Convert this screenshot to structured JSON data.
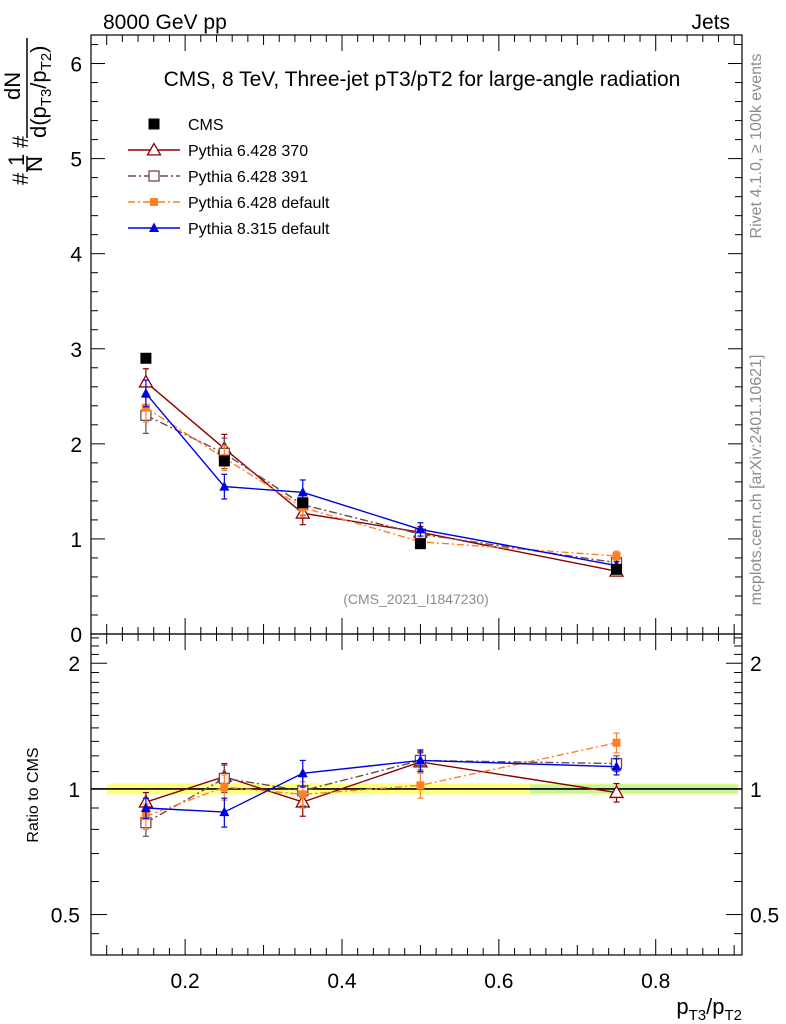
{
  "header": {
    "left": "8000 GeV pp",
    "right": "Jets"
  },
  "side_labels": {
    "rivet": "Rivet 4.1.0, ≥ 100k events",
    "mcplots": "mcplots.cern.ch [arXiv:2401.10621]"
  },
  "chart_data": [
    {
      "type": "line",
      "panel": "main",
      "title": "CMS, 8 TeV, Three-jet pT3/pT2 for large-angle radiation",
      "watermark": "(CMS_2021_I1847230)",
      "ylabel": {
        "num1": "#",
        "num2": "1",
        "den": "N",
        "hash": "#",
        "dN": "dN",
        "d_pre": "d(p",
        "sub1": "T3",
        "slash": "/p",
        "sub2": "T2",
        "close": ")"
      },
      "xlim": [
        0.08,
        0.91
      ],
      "ylim": [
        0,
        6.3
      ],
      "yticks": [
        0,
        1,
        2,
        3,
        4,
        5,
        6
      ],
      "ytick_labels": [
        "0",
        "1",
        "2",
        "3",
        "4",
        "5",
        "6"
      ],
      "x": [
        0.15,
        0.25,
        0.35,
        0.5,
        0.75
      ],
      "series": [
        {
          "name": "CMS",
          "style": "data",
          "color": "#000000",
          "values": [
            2.9,
            1.82,
            1.38,
            0.95,
            0.68
          ],
          "err": [
            0,
            0.05,
            0.04,
            0.03,
            0.03
          ]
        },
        {
          "name": "Pythia 6.428 370",
          "style": "open-triangle",
          "color": "#8b0000",
          "values": [
            2.65,
            1.95,
            1.27,
            1.07,
            0.66
          ],
          "err": [
            0.14,
            0.15,
            0.12,
            0.06,
            0.04
          ]
        },
        {
          "name": "Pythia 6.428 391",
          "style": "open-square",
          "color": "#6b4c4c",
          "values": [
            2.3,
            1.9,
            1.36,
            1.05,
            0.75
          ],
          "err": [
            0.19,
            0.16,
            0.11,
            0.06,
            0.04
          ]
        },
        {
          "name": "Pythia 6.428 default",
          "style": "filled-square",
          "color": "#ff7f27",
          "values": [
            2.38,
            1.85,
            1.33,
            0.97,
            0.82
          ],
          "err": [
            0.15,
            0.13,
            0.1,
            0.06,
            0.05
          ]
        },
        {
          "name": "Pythia 8.315 default",
          "style": "filled-triangle",
          "color": "#0000e0",
          "values": [
            2.53,
            1.55,
            1.49,
            1.1,
            0.72
          ],
          "err": [
            0.14,
            0.13,
            0.13,
            0.07,
            0.04
          ]
        }
      ]
    },
    {
      "type": "line",
      "panel": "ratio",
      "ylabel": "Ratio to CMS",
      "xlabel": {
        "p": "p",
        "sub1": "T3",
        "slash": "/p",
        "sub2": "T2"
      },
      "xlim": [
        0.08,
        0.91
      ],
      "xticks": [
        0.2,
        0.4,
        0.6,
        0.8
      ],
      "xtick_labels": [
        "0.2",
        "0.4",
        "0.6",
        "0.8"
      ],
      "ylim": [
        0.4,
        2.35
      ],
      "yscale": "log",
      "yticks": [
        0.5,
        1,
        2
      ],
      "ytick_labels": [
        "0.5",
        "1",
        "2"
      ],
      "reference": 1.0,
      "x": [
        0.15,
        0.25,
        0.35,
        0.5,
        0.75
      ],
      "series": [
        {
          "name": "Pythia 6.428 370",
          "style": "open-triangle",
          "color": "#8b0000",
          "values": [
            0.93,
            1.07,
            0.93,
            1.16,
            0.98
          ],
          "err": [
            0.05,
            0.08,
            0.07,
            0.06,
            0.05
          ]
        },
        {
          "name": "Pythia 6.428 391",
          "style": "open-square",
          "color": "#6b4c4c",
          "values": [
            0.83,
            1.06,
            0.99,
            1.17,
            1.15
          ],
          "err": [
            0.06,
            0.08,
            0.08,
            0.06,
            0.05
          ]
        },
        {
          "name": "Pythia 6.428 default",
          "style": "filled-square",
          "color": "#ff7f27",
          "values": [
            0.86,
            1.01,
            0.97,
            1.02,
            1.29
          ],
          "err": [
            0.06,
            0.07,
            0.07,
            0.07,
            0.07
          ]
        },
        {
          "name": "Pythia 8.315 default",
          "style": "filled-triangle",
          "color": "#0000e0",
          "values": [
            0.9,
            0.88,
            1.09,
            1.17,
            1.13
          ],
          "err": [
            0.05,
            0.07,
            0.08,
            0.07,
            0.05
          ]
        }
      ]
    }
  ]
}
